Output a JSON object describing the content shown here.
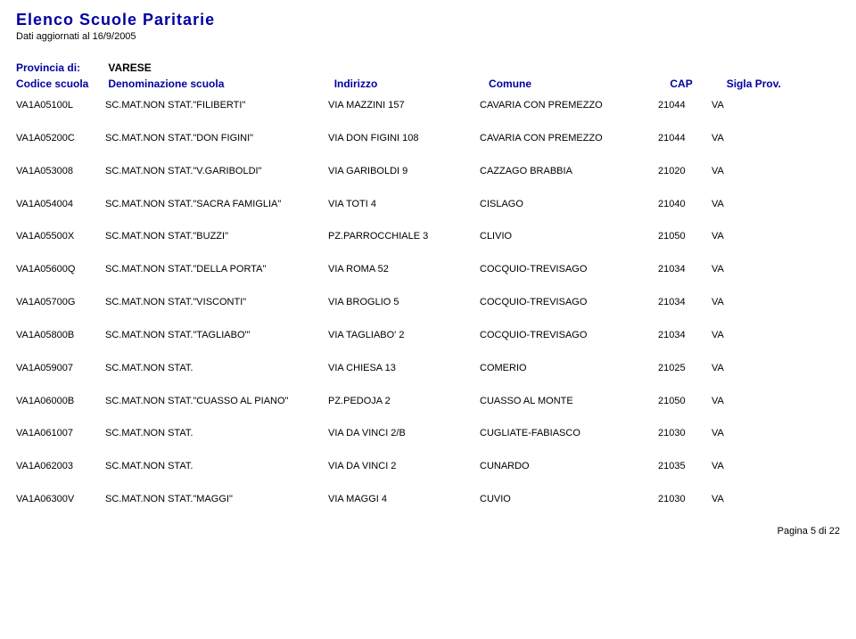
{
  "header": {
    "title": "Elenco Scuole Paritarie",
    "updated": "Dati aggiornati al 16/9/2005",
    "province_label": "Provincia di:",
    "province_value": "VARESE",
    "columns": {
      "code": "Codice scuola",
      "name": "Denominazione scuola",
      "addr": "Indirizzo",
      "town": "Comune",
      "cap": "CAP",
      "prov": "Sigla Prov."
    }
  },
  "colors": {
    "accent": "#0000a0",
    "text": "#000000",
    "background": "#ffffff"
  },
  "rows": [
    {
      "code": "VA1A05100L",
      "name": "SC.MAT.NON STAT.\"FILIBERTI\"",
      "addr": "VIA MAZZINI 157",
      "town": "CAVARIA CON PREMEZZO",
      "cap": "21044",
      "prov": "VA"
    },
    {
      "code": "VA1A05200C",
      "name": "SC.MAT.NON STAT.\"DON FIGINI\"",
      "addr": "VIA DON FIGINI 108",
      "town": "CAVARIA CON PREMEZZO",
      "cap": "21044",
      "prov": "VA"
    },
    {
      "code": "VA1A053008",
      "name": "SC.MAT.NON STAT.\"V.GARIBOLDI\"",
      "addr": "VIA GARIBOLDI 9",
      "town": "CAZZAGO BRABBIA",
      "cap": "21020",
      "prov": "VA"
    },
    {
      "code": "VA1A054004",
      "name": "SC.MAT.NON STAT.\"SACRA FAMIGLIA\"",
      "addr": "VIA TOTI 4",
      "town": "CISLAGO",
      "cap": "21040",
      "prov": "VA"
    },
    {
      "code": "VA1A05500X",
      "name": "SC.MAT.NON STAT.\"BUZZI\"",
      "addr": "PZ.PARROCCHIALE 3",
      "town": "CLIVIO",
      "cap": "21050",
      "prov": "VA"
    },
    {
      "code": "VA1A05600Q",
      "name": "SC.MAT.NON STAT.\"DELLA PORTA\"",
      "addr": "VIA ROMA 52",
      "town": "COCQUIO-TREVISAGO",
      "cap": "21034",
      "prov": "VA"
    },
    {
      "code": "VA1A05700G",
      "name": "SC.MAT.NON STAT.\"VISCONTI\"",
      "addr": "VIA BROGLIO 5",
      "town": "COCQUIO-TREVISAGO",
      "cap": "21034",
      "prov": "VA"
    },
    {
      "code": "VA1A05800B",
      "name": "SC.MAT.NON STAT.\"TAGLIABO'\"",
      "addr": "VIA TAGLIABO' 2",
      "town": "COCQUIO-TREVISAGO",
      "cap": "21034",
      "prov": "VA"
    },
    {
      "code": "VA1A059007",
      "name": "SC.MAT.NON STAT.",
      "addr": "VIA CHIESA 13",
      "town": "COMERIO",
      "cap": "21025",
      "prov": "VA"
    },
    {
      "code": "VA1A06000B",
      "name": "SC.MAT.NON STAT.\"CUASSO AL PIANO\"",
      "addr": "PZ.PEDOJA 2",
      "town": "CUASSO AL MONTE",
      "cap": "21050",
      "prov": "VA"
    },
    {
      "code": "VA1A061007",
      "name": "SC.MAT.NON STAT.",
      "addr": "VIA DA VINCI 2/B",
      "town": "CUGLIATE-FABIASCO",
      "cap": "21030",
      "prov": "VA"
    },
    {
      "code": "VA1A062003",
      "name": "SC.MAT.NON STAT.",
      "addr": "VIA DA VINCI 2",
      "town": "CUNARDO",
      "cap": "21035",
      "prov": "VA"
    },
    {
      "code": "VA1A06300V",
      "name": "SC.MAT.NON STAT.\"MAGGI\"",
      "addr": "VIA MAGGI 4",
      "town": "CUVIO",
      "cap": "21030",
      "prov": "VA"
    }
  ],
  "footer": {
    "page_text": "Pagina 5 di 22"
  }
}
